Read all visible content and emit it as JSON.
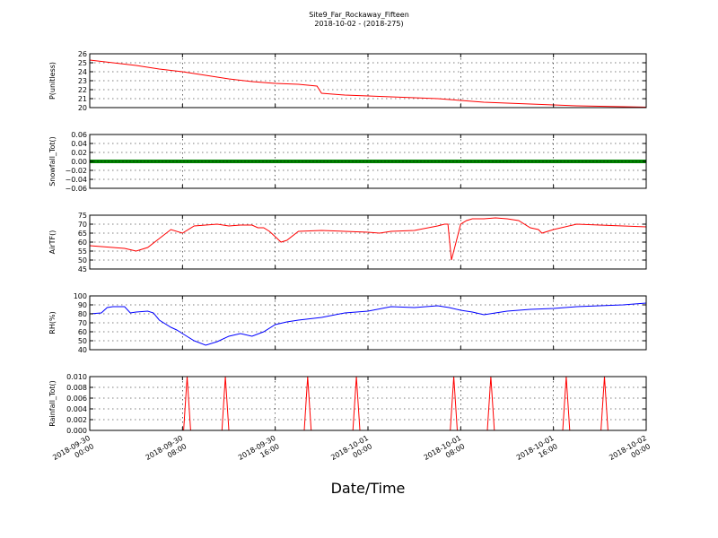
{
  "title": "Site9_Far_Rockaway_Fifteen",
  "subtitle": "2018-10-02 - (2018-275)",
  "xlabel": "Date/Time",
  "x_ticks": [
    {
      "line1": "2018-09-30",
      "line2": "00:00"
    },
    {
      "line1": "2018-09-30",
      "line2": "08:00"
    },
    {
      "line1": "2018-09-30",
      "line2": "16:00"
    },
    {
      "line1": "2018-10-01",
      "line2": "00:00"
    },
    {
      "line1": "2018-10-01",
      "line2": "08:00"
    },
    {
      "line1": "2018-10-01",
      "line2": "16:00"
    },
    {
      "line1": "2018-10-02",
      "line2": "00:00"
    }
  ],
  "chart_data": [
    {
      "type": "line",
      "ylabel": "P(unitless)",
      "ylim": [
        20,
        26
      ],
      "yticks": [
        "26",
        "25",
        "24",
        "23",
        "22",
        "21",
        "20"
      ],
      "ytick_values": [
        26,
        25,
        24,
        23,
        22,
        21,
        20
      ],
      "color": "#ff0000",
      "x_hours": [
        0,
        2,
        4,
        6,
        8,
        10,
        12,
        14,
        16,
        18,
        19.6,
        20,
        22,
        24,
        26,
        28,
        30,
        32,
        34,
        36,
        38,
        40,
        42,
        44,
        46,
        48
      ],
      "y": [
        25.3,
        25.0,
        24.7,
        24.3,
        24.0,
        23.6,
        23.2,
        22.9,
        22.7,
        22.6,
        22.4,
        21.6,
        21.4,
        21.3,
        21.2,
        21.1,
        21.0,
        20.8,
        20.6,
        20.5,
        20.4,
        20.3,
        20.2,
        20.15,
        20.1,
        20.05
      ]
    },
    {
      "type": "line",
      "ylabel": "Snowfall_Tot()",
      "ylim": [
        -0.06,
        0.06
      ],
      "yticks": [
        "0.06",
        "0.04",
        "0.02",
        "0.00",
        "−0.02",
        "−0.04",
        "−0.06"
      ],
      "ytick_values": [
        0.06,
        0.04,
        0.02,
        0.0,
        -0.02,
        -0.04,
        -0.06
      ],
      "color": "#008000",
      "x_hours": [
        0,
        48
      ],
      "y": [
        0,
        0
      ]
    },
    {
      "type": "line",
      "ylabel": "AirTF()",
      "ylim": [
        45,
        75
      ],
      "yticks": [
        "75",
        "70",
        "65",
        "60",
        "55",
        "50",
        "45"
      ],
      "ytick_values": [
        75,
        70,
        65,
        60,
        55,
        50,
        45
      ],
      "color": "#ff0000",
      "x_hours": [
        0,
        1,
        2,
        3,
        4,
        5,
        6,
        7,
        8,
        9,
        10,
        11,
        12,
        13,
        14,
        14.5,
        15,
        15.5,
        16,
        16.5,
        17,
        18,
        20,
        22,
        24,
        25,
        26,
        28,
        30,
        30.6,
        30.9,
        31.2,
        32,
        32.5,
        33,
        34,
        35,
        36,
        37,
        38,
        38.7,
        39,
        40,
        42,
        44,
        46,
        48
      ],
      "y": [
        58,
        57.5,
        57,
        56.5,
        55,
        57,
        62,
        67,
        65,
        69,
        69.5,
        70,
        69,
        69.5,
        69.5,
        68,
        68,
        66,
        63,
        60,
        61,
        66,
        66.5,
        66,
        65.5,
        65,
        66,
        66.5,
        69,
        70,
        70,
        50,
        70,
        72,
        73,
        73,
        73.5,
        73,
        72,
        68,
        67,
        65,
        67,
        70,
        69.5,
        69,
        68.5
      ]
    },
    {
      "type": "line",
      "ylabel": "RH(%)",
      "ylim": [
        40,
        100
      ],
      "yticks": [
        "100",
        "90",
        "80",
        "70",
        "60",
        "50",
        "40"
      ],
      "ytick_values": [
        100,
        90,
        80,
        70,
        60,
        50,
        40
      ],
      "color": "#0000ff",
      "x_hours": [
        0,
        1,
        1.5,
        2,
        3,
        3.5,
        4,
        5,
        5.5,
        6,
        7,
        7.5,
        8,
        9,
        10,
        11,
        12,
        13,
        14,
        15,
        16,
        17,
        18,
        20,
        22,
        24,
        26,
        28,
        30,
        31,
        32,
        33,
        34,
        36,
        38,
        40,
        42,
        44,
        46,
        48
      ],
      "y": [
        80,
        81,
        87,
        88,
        88,
        81,
        82,
        83,
        81,
        73,
        65,
        62,
        58,
        50,
        45,
        49,
        55,
        58,
        55,
        60,
        68,
        71,
        73,
        76,
        81,
        83,
        88,
        87,
        89,
        87,
        84,
        82,
        79,
        83,
        85,
        86,
        88,
        89,
        90,
        92
      ]
    },
    {
      "type": "line",
      "ylabel": "Rainfall_Tot()",
      "ylim": [
        0,
        0.01
      ],
      "yticks": [
        "0.010",
        "0.008",
        "0.006",
        "0.004",
        "0.002",
        "0.000"
      ],
      "ytick_values": [
        0.01,
        0.008,
        0.006,
        0.004,
        0.002,
        0.0
      ],
      "color": "#ff0000",
      "x_hours": [
        0,
        8.1,
        8.4,
        8.7,
        11.4,
        11.7,
        12.0,
        18.5,
        18.8,
        19.1,
        22.7,
        23.0,
        23.3,
        31.1,
        31.4,
        31.7,
        34.3,
        34.6,
        34.9,
        40.8,
        41.1,
        41.4,
        44.1,
        44.4,
        44.7,
        48
      ],
      "y": [
        0,
        0,
        0.01,
        0,
        0,
        0.01,
        0,
        0,
        0.01,
        0,
        0,
        0.01,
        0,
        0,
        0.01,
        0,
        0,
        0.01,
        0,
        0,
        0.01,
        0,
        0,
        0.01,
        0,
        0
      ]
    }
  ]
}
